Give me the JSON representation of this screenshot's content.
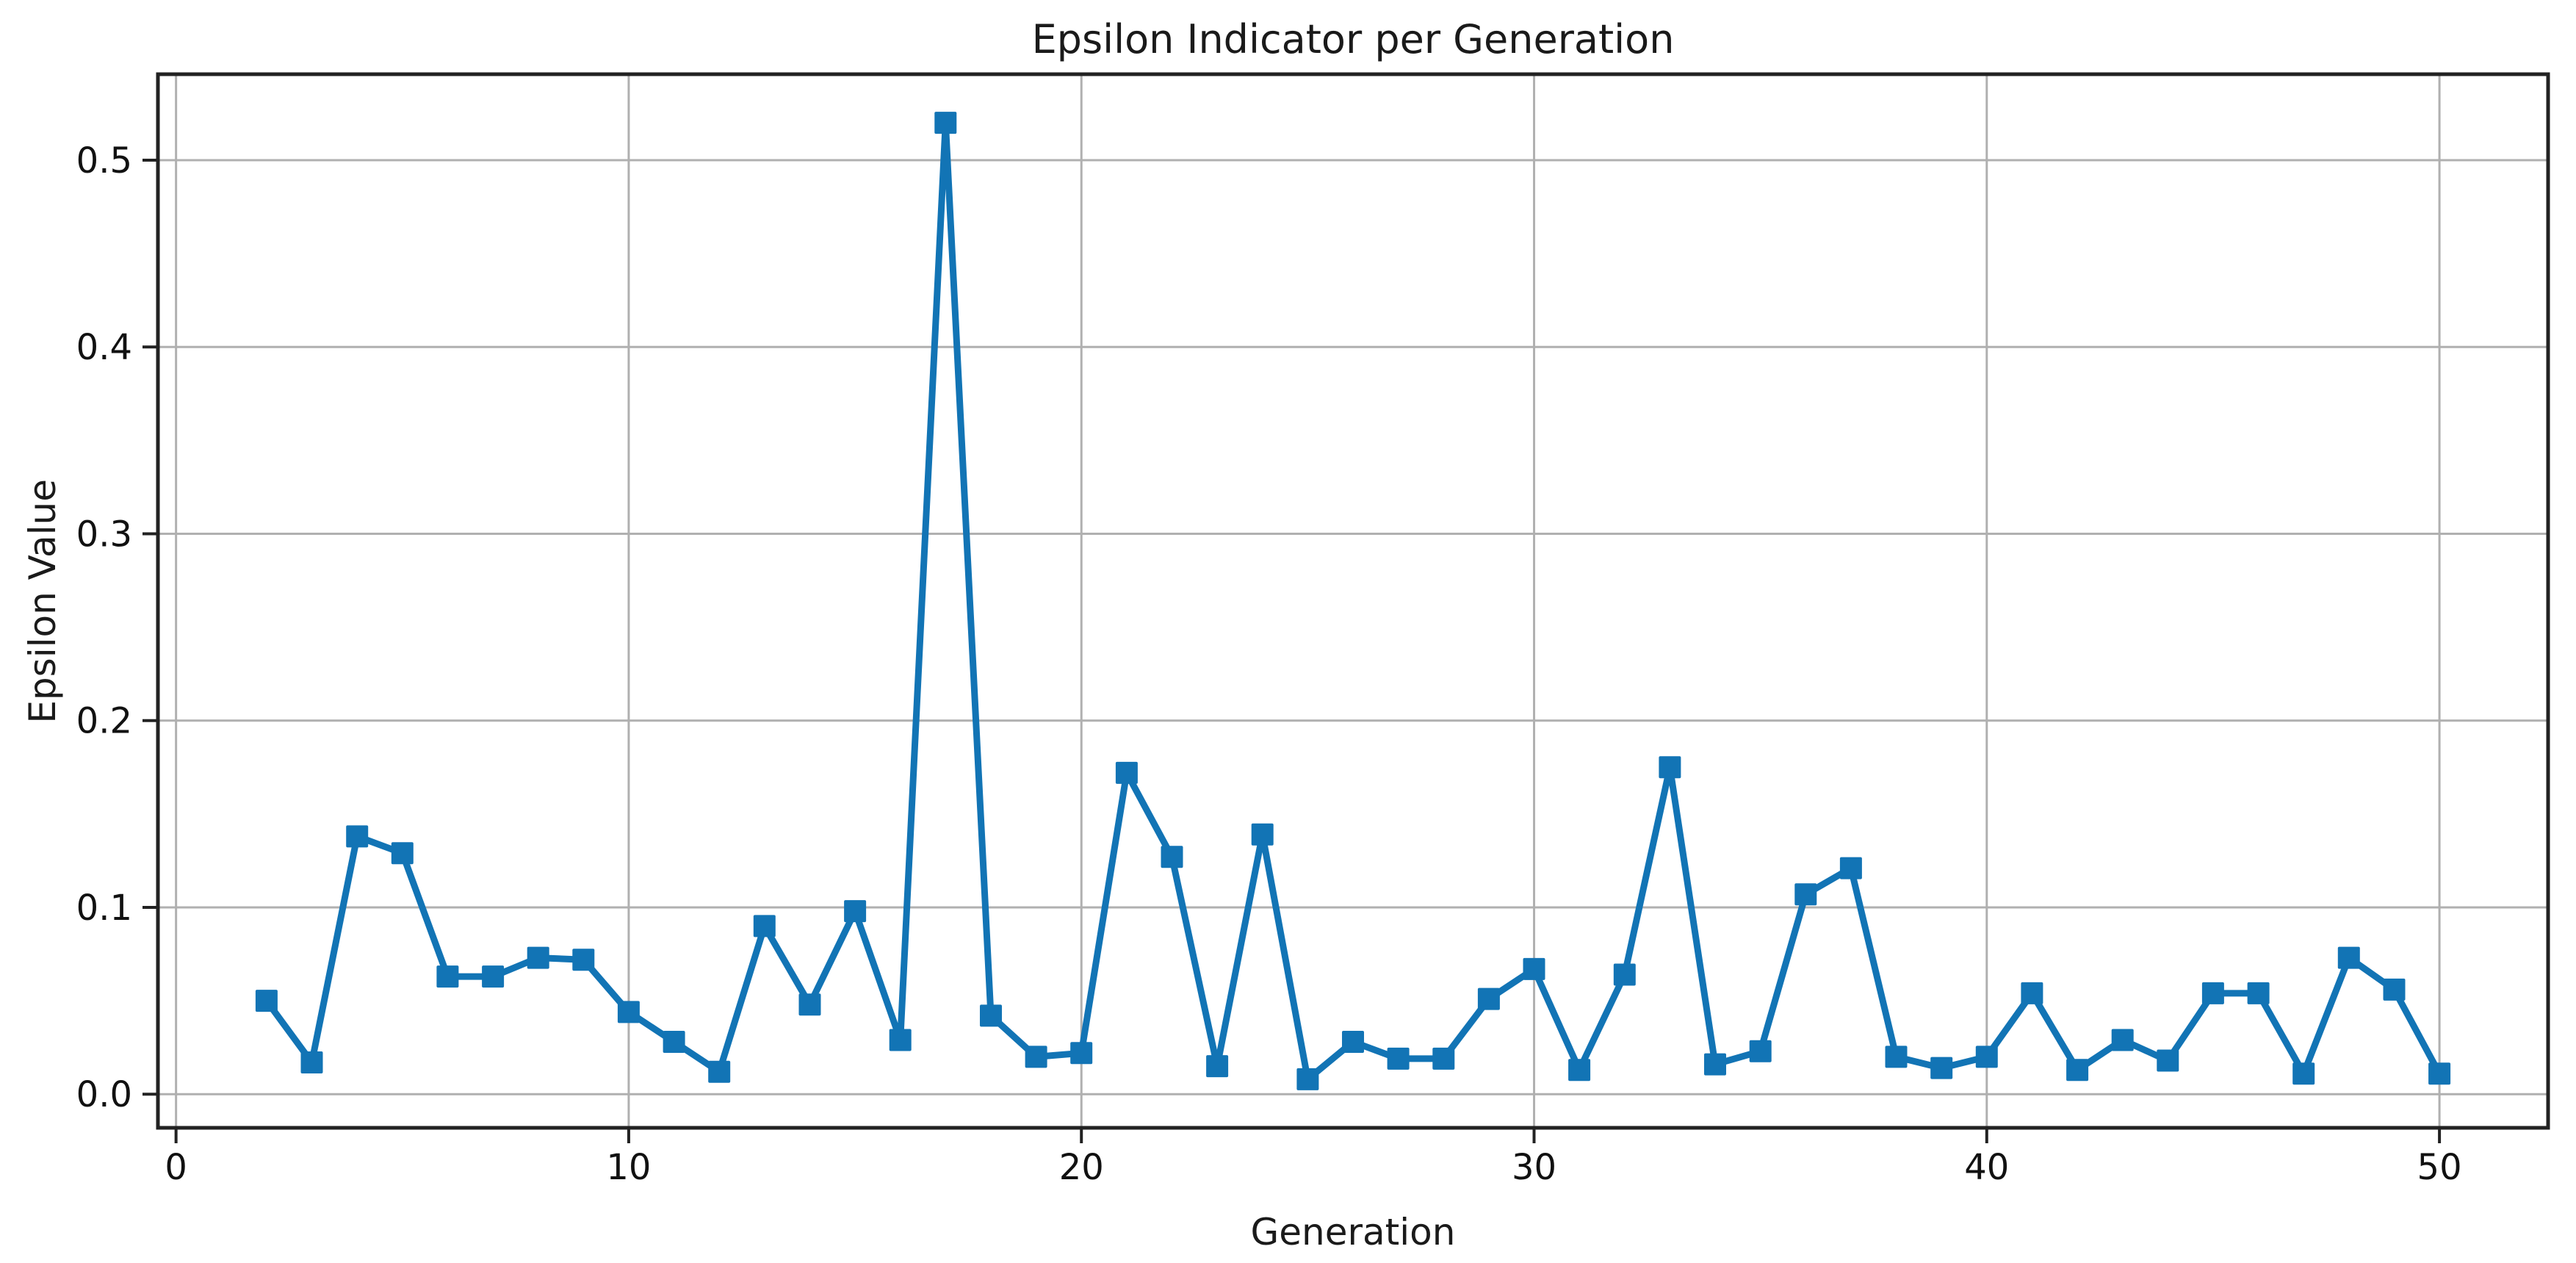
{
  "chart_data": {
    "type": "line",
    "title": "Epsilon Indicator per Generation",
    "xlabel": "Generation",
    "ylabel": "Epsilon Value",
    "grid": true,
    "legend_position": "none",
    "marker": "square",
    "xlim": [
      -0.4,
      52.4
    ],
    "ylim": [
      -0.018,
      0.546
    ],
    "xticks": [
      0,
      10,
      20,
      30,
      40,
      50
    ],
    "xtick_labels": [
      "0",
      "10",
      "20",
      "30",
      "40",
      "50"
    ],
    "yticks": [
      0.0,
      0.1,
      0.2,
      0.3,
      0.4,
      0.5
    ],
    "ytick_labels": [
      "0.0",
      "0.1",
      "0.2",
      "0.3",
      "0.4",
      "0.5"
    ],
    "series": [
      {
        "name": "Epsilon Indicator",
        "x": [
          2,
          3,
          4,
          5,
          6,
          7,
          8,
          9,
          10,
          11,
          12,
          13,
          14,
          15,
          16,
          17,
          18,
          19,
          20,
          21,
          22,
          23,
          24,
          25,
          26,
          27,
          28,
          29,
          30,
          31,
          32,
          33,
          34,
          35,
          36,
          37,
          38,
          39,
          40,
          41,
          42,
          43,
          44,
          45,
          46,
          47,
          48,
          49,
          50
        ],
        "y": [
          0.05,
          0.017,
          0.138,
          0.129,
          0.063,
          0.063,
          0.073,
          0.072,
          0.044,
          0.028,
          0.012,
          0.09,
          0.048,
          0.098,
          0.029,
          0.52,
          0.042,
          0.02,
          0.022,
          0.172,
          0.127,
          0.015,
          0.139,
          0.008,
          0.028,
          0.019,
          0.019,
          0.051,
          0.067,
          0.013,
          0.064,
          0.175,
          0.016,
          0.023,
          0.107,
          0.121,
          0.02,
          0.014,
          0.02,
          0.054,
          0.013,
          0.029,
          0.018,
          0.054,
          0.054,
          0.011,
          0.073,
          0.056,
          0.011
        ]
      }
    ],
    "colors": {
      "line": "#1274b5",
      "grid": "#b0b0b0",
      "axis": "#222222",
      "text": "#111111",
      "background": "#ffffff"
    }
  }
}
